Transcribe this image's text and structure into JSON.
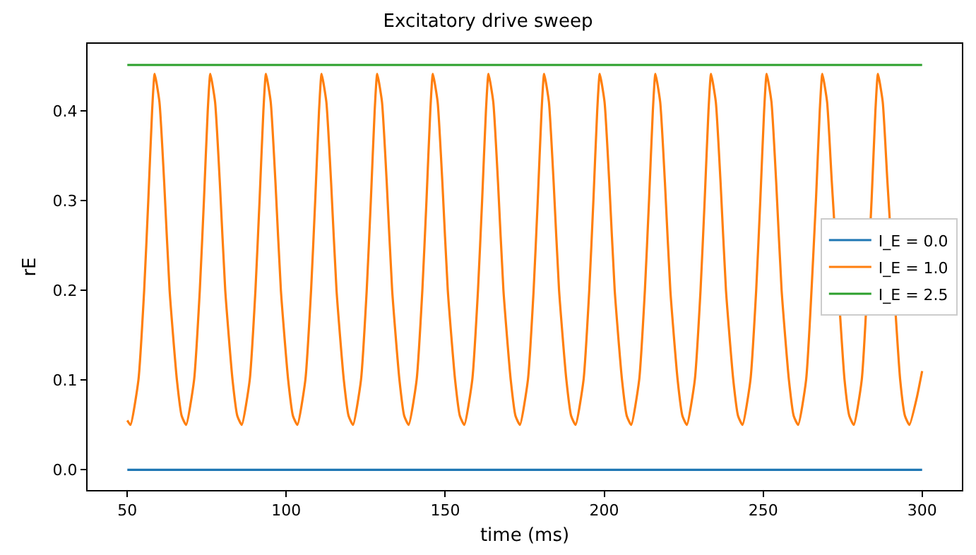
{
  "chart_data": {
    "type": "line",
    "title": "Excitatory drive sweep",
    "xlabel": "time (ms)",
    "ylabel": "rE",
    "xlim": [
      37.5,
      312.5
    ],
    "ylim": [
      -0.0226,
      0.4746
    ],
    "xticks": [
      50,
      100,
      150,
      200,
      250,
      300
    ],
    "yticks": [
      {
        "value": 0,
        "label": "0.0"
      },
      {
        "value": 0.1,
        "label": "0.1"
      },
      {
        "value": 0.2,
        "label": "0.2"
      },
      {
        "value": 0.3,
        "label": "0.3"
      },
      {
        "value": 0.4,
        "label": "0.4"
      }
    ],
    "grid": false,
    "legend": "right",
    "marker": "none",
    "line_style": "solid",
    "series": [
      {
        "name": "I_E = 0.0",
        "color": "#1f77b4",
        "x": [
          50,
          300
        ],
        "values": [
          0,
          0
        ]
      },
      {
        "name": "I_E = 1.0",
        "color": "#ff7f0e",
        "x": [
          50,
          51,
          53.5,
          55.3,
          56.6,
          57.8,
          58.6,
          60.1,
          61.6,
          63.3,
          65.6,
          67.1,
          68.5,
          71.0,
          72.8,
          74.1,
          75.3,
          76.1,
          77.6,
          79.1,
          80.8,
          83.1,
          84.6,
          86.0,
          88.5,
          90.3,
          91.6,
          92.8,
          93.6,
          95.1,
          96.6,
          98.3,
          100.6,
          102.1,
          103.5,
          106.0,
          107.8,
          109.1,
          110.3,
          111.1,
          112.6,
          114.1,
          115.8,
          118.1,
          119.6,
          121.0,
          123.5,
          125.3,
          126.6,
          127.8,
          128.6,
          130.1,
          131.6,
          133.3,
          135.6,
          137.1,
          138.5,
          141.0,
          142.8,
          144.1,
          145.3,
          146.1,
          147.6,
          149.1,
          150.8,
          153.1,
          154.6,
          156.0,
          158.5,
          160.3,
          161.6,
          162.8,
          163.6,
          165.1,
          166.6,
          168.3,
          170.6,
          172.1,
          173.5,
          176.0,
          177.8,
          179.1,
          180.3,
          181.1,
          182.6,
          184.1,
          185.8,
          188.1,
          189.6,
          191.0,
          193.5,
          195.3,
          196.6,
          197.8,
          198.6,
          200.1,
          201.6,
          203.3,
          205.6,
          207.1,
          208.5,
          211.0,
          212.8,
          214.1,
          215.3,
          216.1,
          217.6,
          219.1,
          220.8,
          223.1,
          224.6,
          226.0,
          228.5,
          230.3,
          231.6,
          232.8,
          233.6,
          235.1,
          236.6,
          238.3,
          240.6,
          242.1,
          243.5,
          246.0,
          247.8,
          249.1,
          250.3,
          251.1,
          252.6,
          254.1,
          255.8,
          258.1,
          259.6,
          261.0,
          263.5,
          266.6,
          267.8,
          268.6,
          270.1,
          271.6,
          275.6,
          277.1,
          278.5,
          281.0,
          284.1,
          285.3,
          286.1,
          287.6,
          289.1,
          293.1,
          294.6,
          296.0,
          298.3,
          300
        ],
        "values": [
          0.055,
          0.05,
          0.1,
          0.2,
          0.3,
          0.4,
          0.441,
          0.41,
          0.32,
          0.2,
          0.1,
          0.06,
          0.05,
          0.1,
          0.2,
          0.3,
          0.4,
          0.441,
          0.41,
          0.32,
          0.2,
          0.1,
          0.06,
          0.05,
          0.1,
          0.2,
          0.3,
          0.4,
          0.441,
          0.41,
          0.32,
          0.2,
          0.1,
          0.06,
          0.05,
          0.1,
          0.2,
          0.3,
          0.4,
          0.441,
          0.41,
          0.32,
          0.2,
          0.1,
          0.06,
          0.05,
          0.1,
          0.2,
          0.3,
          0.4,
          0.441,
          0.41,
          0.32,
          0.2,
          0.1,
          0.06,
          0.05,
          0.1,
          0.2,
          0.3,
          0.4,
          0.441,
          0.41,
          0.32,
          0.2,
          0.1,
          0.06,
          0.05,
          0.1,
          0.2,
          0.3,
          0.4,
          0.441,
          0.41,
          0.32,
          0.2,
          0.1,
          0.06,
          0.05,
          0.1,
          0.2,
          0.3,
          0.4,
          0.441,
          0.41,
          0.32,
          0.2,
          0.1,
          0.06,
          0.05,
          0.1,
          0.2,
          0.3,
          0.4,
          0.441,
          0.41,
          0.32,
          0.2,
          0.1,
          0.06,
          0.05,
          0.1,
          0.2,
          0.3,
          0.4,
          0.441,
          0.41,
          0.32,
          0.2,
          0.1,
          0.06,
          0.05,
          0.1,
          0.2,
          0.3,
          0.4,
          0.441,
          0.41,
          0.32,
          0.2,
          0.1,
          0.06,
          0.05,
          0.1,
          0.2,
          0.3,
          0.4,
          0.441,
          0.41,
          0.32,
          0.2,
          0.1,
          0.06,
          0.05,
          0.1,
          0.3,
          0.4,
          0.441,
          0.41,
          0.32,
          0.1,
          0.06,
          0.05,
          0.1,
          0.3,
          0.4,
          0.441,
          0.41,
          0.32,
          0.1,
          0.06,
          0.05,
          0.08,
          0.11
        ]
      },
      {
        "name": "I_E = 2.5",
        "color": "#2ca02c",
        "x": [
          50,
          300
        ],
        "values": [
          0.451,
          0.451
        ]
      }
    ]
  }
}
